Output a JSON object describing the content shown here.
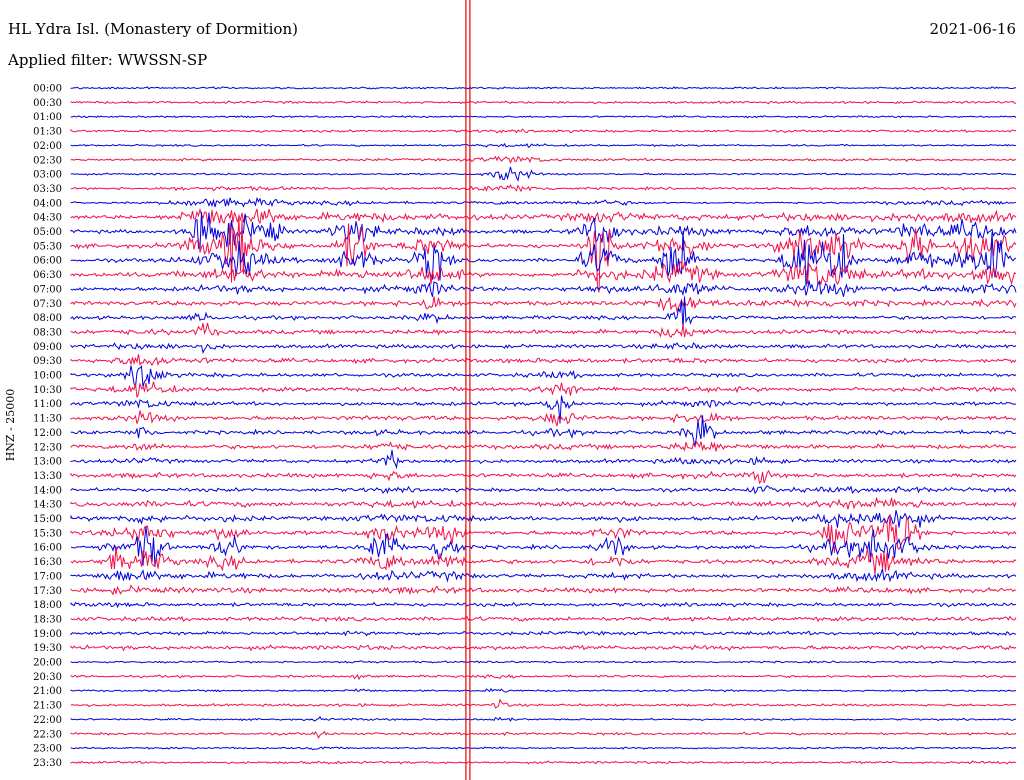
{
  "header": {
    "title": "HL Ydra Isl. (Monastery of Dormition)",
    "filter": "Applied filter: WWSSN-SP",
    "date": "2021-06-16"
  },
  "chart_data": {
    "type": "line",
    "ylabel": "HNZ - 25000",
    "colors": {
      "even": "#0000dd",
      "odd": "#f0104a",
      "event": "#ee0000"
    },
    "times": [
      "00:00",
      "00:30",
      "01:00",
      "01:30",
      "02:00",
      "02:30",
      "03:00",
      "03:30",
      "04:00",
      "04:30",
      "05:00",
      "05:30",
      "06:00",
      "06:30",
      "07:00",
      "07:30",
      "08:00",
      "08:30",
      "09:00",
      "09:30",
      "10:00",
      "10:30",
      "11:00",
      "11:30",
      "12:00",
      "12:30",
      "13:00",
      "13:30",
      "14:00",
      "14:30",
      "15:00",
      "15:30",
      "16:00",
      "16:30",
      "17:00",
      "17:30",
      "18:00",
      "18:30",
      "19:00",
      "19:30",
      "20:00",
      "20:30",
      "21:00",
      "21:30",
      "22:00",
      "22:30",
      "23:00",
      "23:30"
    ],
    "minutes_per_line": 30,
    "event_minute": 12.6
  }
}
